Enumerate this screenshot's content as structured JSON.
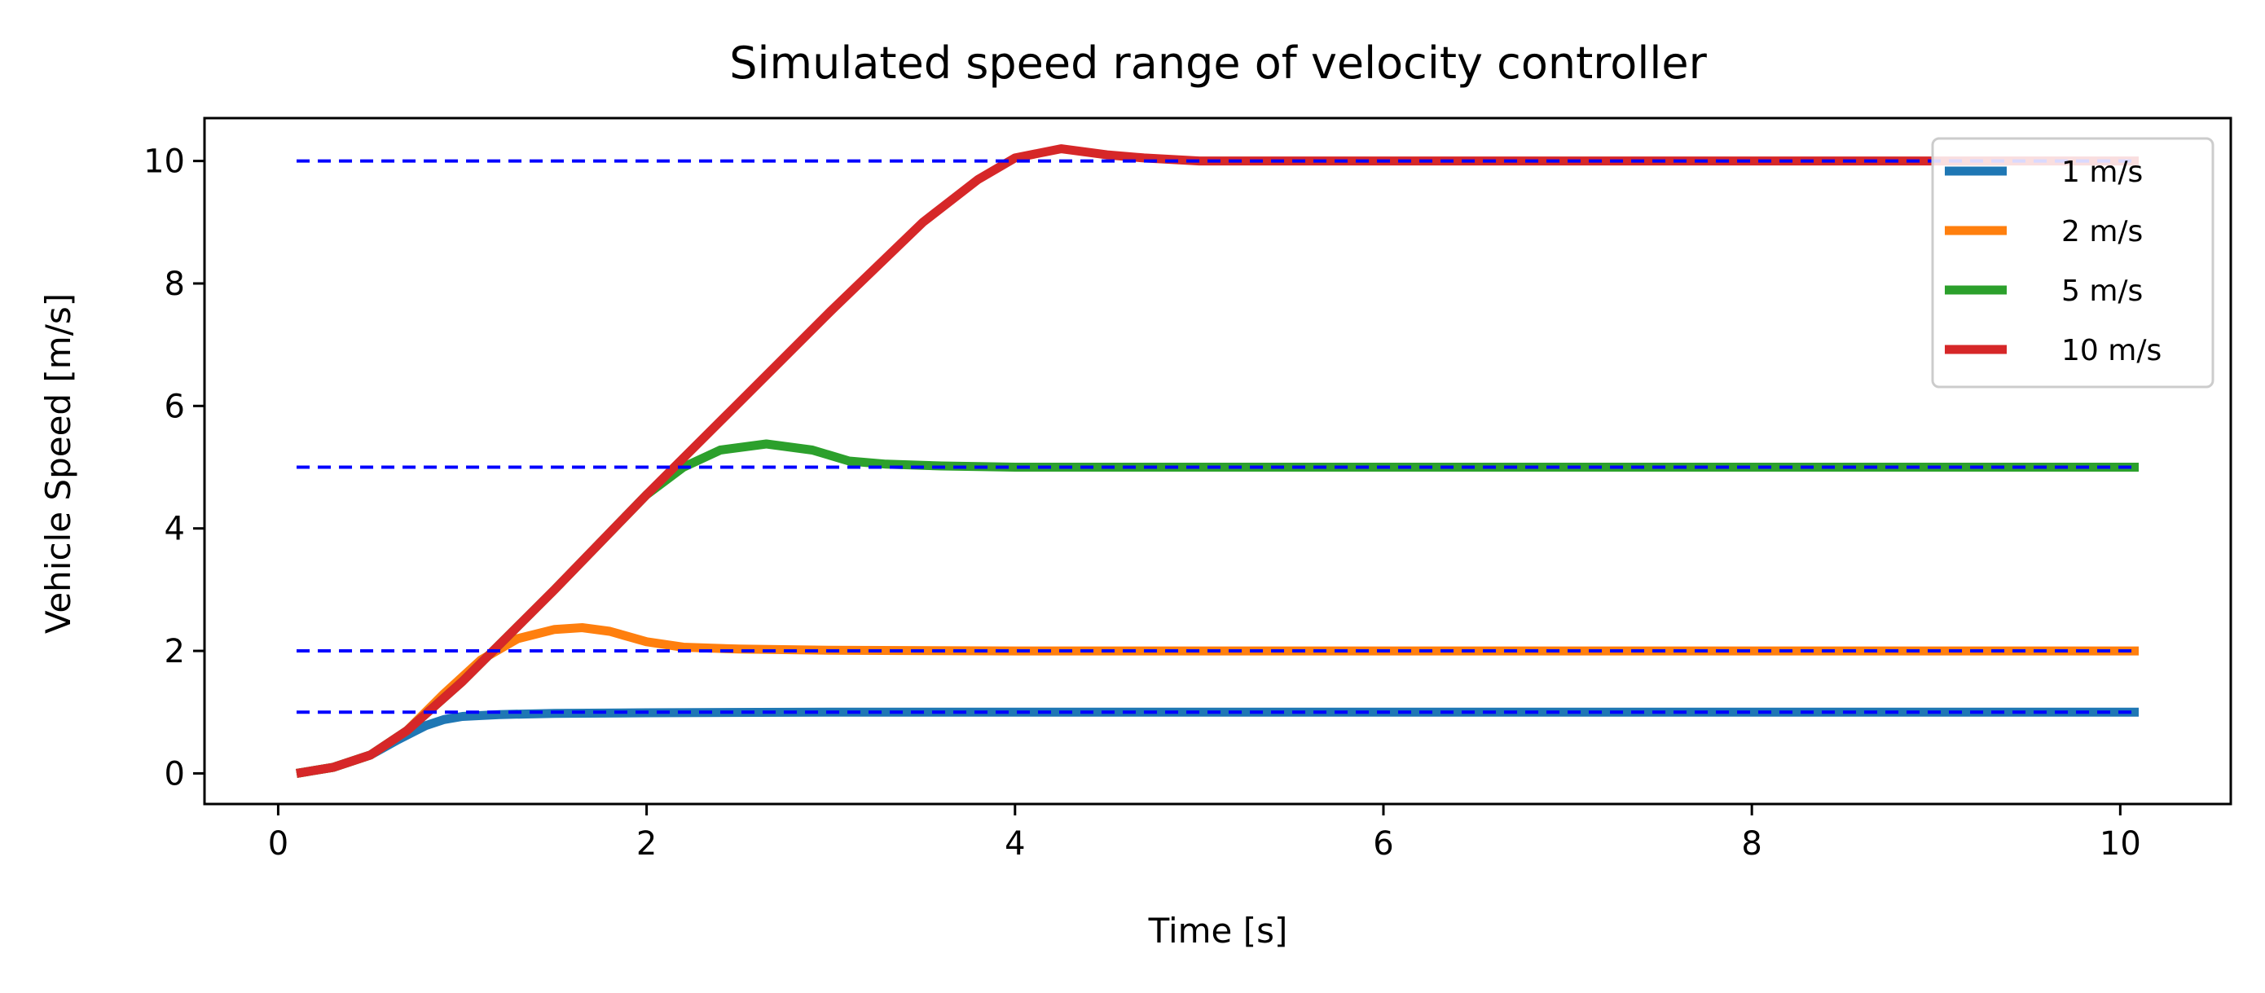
{
  "chart_data": {
    "type": "line",
    "title": "Simulated speed range of velocity controller",
    "xlabel": "Time [s]",
    "ylabel": "Vehicle Speed [m/s]",
    "xlim": [
      -0.4,
      10.6
    ],
    "ylim": [
      -0.5,
      10.7
    ],
    "xticks": [
      0,
      2,
      4,
      6,
      8,
      10
    ],
    "yticks": [
      0,
      2,
      4,
      6,
      8,
      10
    ],
    "grid": false,
    "legend_position": "top-right",
    "series": [
      {
        "name": "1 m/s",
        "color": "#1f77b4",
        "x": [
          0.1,
          0.3,
          0.5,
          0.65,
          0.8,
          0.9,
          1.0,
          1.2,
          1.5,
          2.0,
          3.0,
          5.0,
          8.0,
          10.1
        ],
        "y": [
          0.0,
          0.1,
          0.3,
          0.55,
          0.78,
          0.88,
          0.93,
          0.96,
          0.98,
          0.99,
          1.0,
          1.0,
          1.0,
          1.0
        ]
      },
      {
        "name": "2 m/s",
        "color": "#ff7f0e",
        "x": [
          0.1,
          0.3,
          0.5,
          0.7,
          0.9,
          1.1,
          1.3,
          1.5,
          1.65,
          1.8,
          2.0,
          2.2,
          2.5,
          3.0,
          4.0,
          10.1
        ],
        "y": [
          0.0,
          0.1,
          0.3,
          0.7,
          1.3,
          1.85,
          2.2,
          2.35,
          2.38,
          2.32,
          2.15,
          2.06,
          2.03,
          2.01,
          2.0,
          2.0
        ]
      },
      {
        "name": "5 m/s",
        "color": "#2ca02c",
        "x": [
          0.1,
          0.3,
          0.5,
          0.7,
          1.0,
          1.5,
          2.0,
          2.2,
          2.4,
          2.65,
          2.9,
          3.1,
          3.3,
          3.6,
          4.0,
          5.0,
          10.1
        ],
        "y": [
          0.0,
          0.1,
          0.3,
          0.7,
          1.5,
          3.0,
          4.55,
          5.0,
          5.28,
          5.38,
          5.28,
          5.1,
          5.05,
          5.02,
          5.0,
          5.0,
          5.0
        ]
      },
      {
        "name": "10 m/s",
        "color": "#d62728",
        "x": [
          0.1,
          0.3,
          0.5,
          0.7,
          1.0,
          1.5,
          2.0,
          2.5,
          3.0,
          3.5,
          3.8,
          4.0,
          4.25,
          4.5,
          4.7,
          5.0,
          6.0,
          10.1
        ],
        "y": [
          0.0,
          0.1,
          0.3,
          0.7,
          1.5,
          3.0,
          4.55,
          6.05,
          7.55,
          9.0,
          9.7,
          10.05,
          10.2,
          10.1,
          10.05,
          10.0,
          10.0,
          10.0
        ]
      }
    ],
    "reference_lines": {
      "color": "#0000ff",
      "style": "dashed",
      "x_range": [
        0.1,
        10.1
      ],
      "values": [
        1,
        2,
        5,
        10
      ]
    }
  }
}
